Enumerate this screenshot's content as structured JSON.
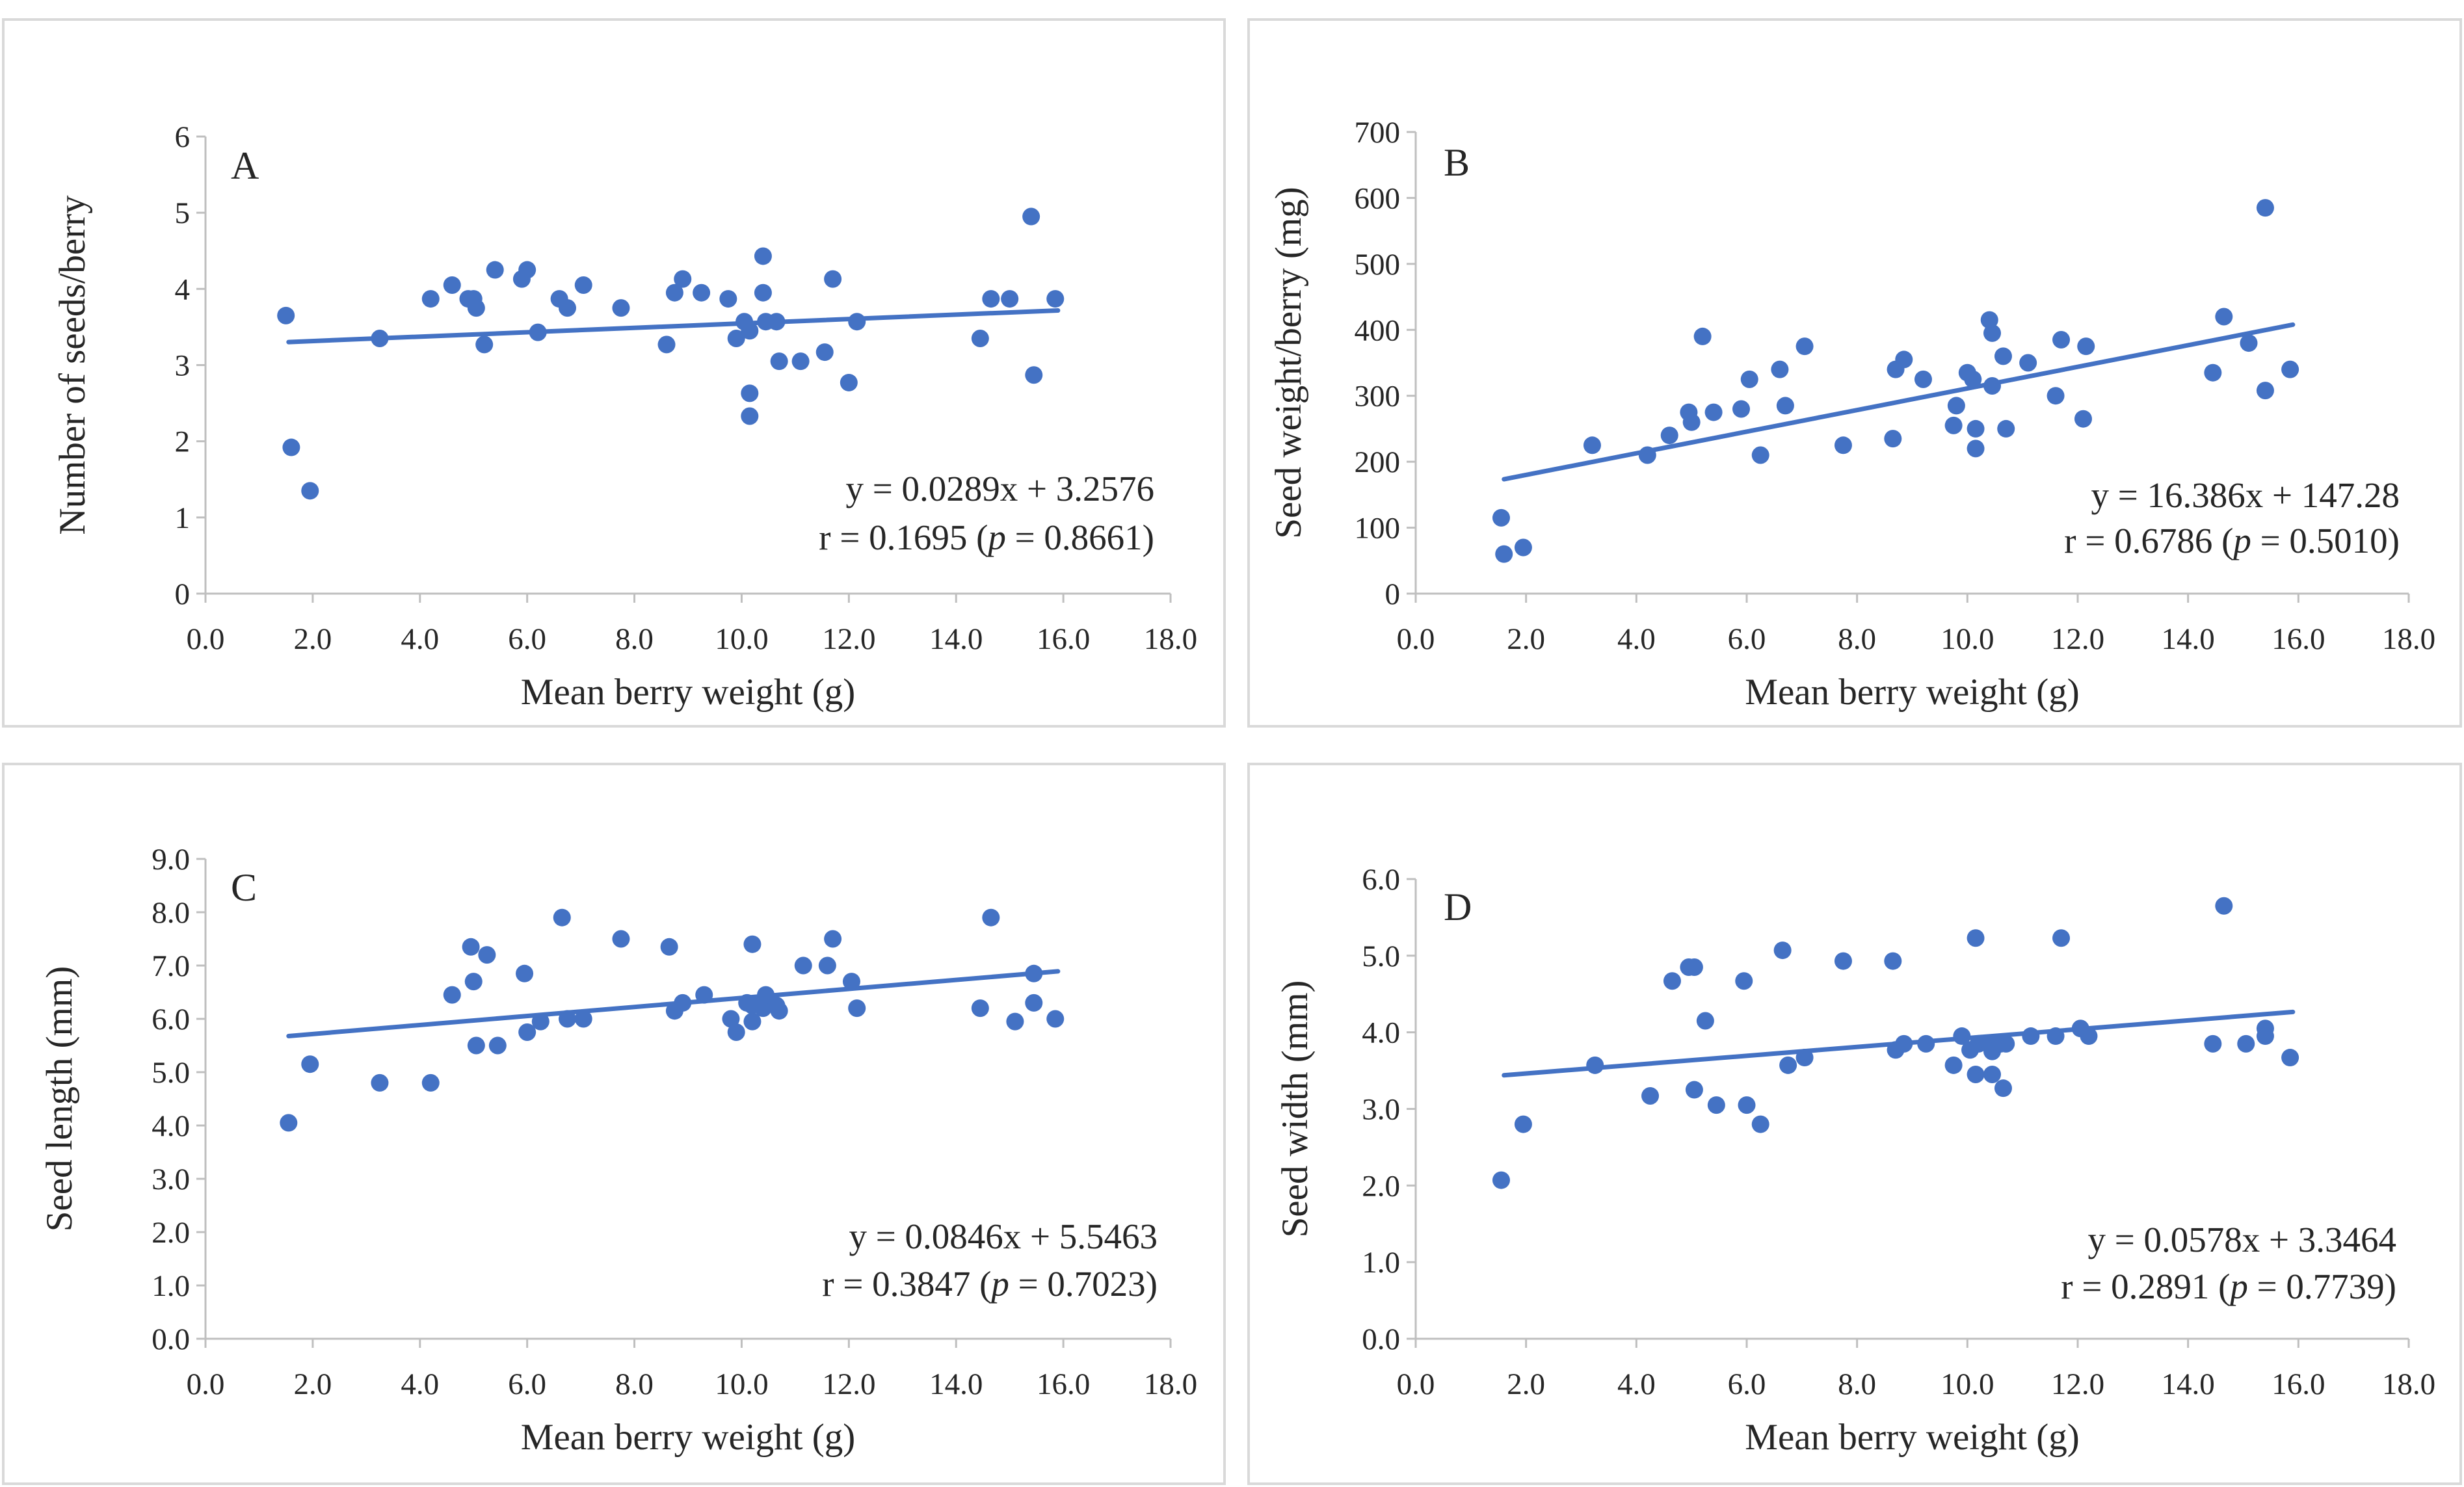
{
  "figure": {
    "name": "seed traits vs mean berry weight"
  },
  "style": {
    "marker_color": "#4472C4",
    "line_color": "#4472C4",
    "axis_color": "#BFBFBF",
    "text_color": "#262626",
    "border_color": "#D9D9D9"
  },
  "chart_data": [
    {
      "id": "A",
      "type": "scatter",
      "panel_label": "A",
      "xlabel": "Mean berry weight (g)",
      "ylabel": "Number of seeds/berry",
      "xlim": [
        0,
        18
      ],
      "ylim": [
        0,
        6
      ],
      "xticks": [
        "0.0",
        "2.0",
        "4.0",
        "6.0",
        "8.0",
        "10.0",
        "12.0",
        "14.0",
        "16.0",
        "18.0"
      ],
      "yticks": [
        "0",
        "1",
        "2",
        "3",
        "4",
        "5",
        "6"
      ],
      "x_tick_step": 2,
      "y_tick_step": 1,
      "trend": {
        "slope": 0.0289,
        "intercept": 3.2576,
        "x_range": [
          1.55,
          15.9
        ]
      },
      "equation": "y = 0.0289x + 3.2576",
      "r_prefix": "r = 0.1695 (",
      "p_symbol": "p",
      "p_suffix": " = 0.8661)",
      "points": [
        [
          1.5,
          3.65
        ],
        [
          1.6,
          1.92
        ],
        [
          1.95,
          1.35
        ],
        [
          3.25,
          3.35
        ],
        [
          4.2,
          3.87
        ],
        [
          4.6,
          4.05
        ],
        [
          4.9,
          3.87
        ],
        [
          5.0,
          3.87
        ],
        [
          5.05,
          3.75
        ],
        [
          5.2,
          3.27
        ],
        [
          5.4,
          4.25
        ],
        [
          5.9,
          4.13
        ],
        [
          6.0,
          4.25
        ],
        [
          6.2,
          3.43
        ],
        [
          6.6,
          3.87
        ],
        [
          6.75,
          3.75
        ],
        [
          7.05,
          4.05
        ],
        [
          7.75,
          3.75
        ],
        [
          8.6,
          3.27
        ],
        [
          8.75,
          3.95
        ],
        [
          8.9,
          4.13
        ],
        [
          9.25,
          3.95
        ],
        [
          9.75,
          3.87
        ],
        [
          9.9,
          3.35
        ],
        [
          10.05,
          3.57
        ],
        [
          10.15,
          3.45
        ],
        [
          10.15,
          2.63
        ],
        [
          10.15,
          2.33
        ],
        [
          10.4,
          4.43
        ],
        [
          10.4,
          3.95
        ],
        [
          10.45,
          3.57
        ],
        [
          10.65,
          3.57
        ],
        [
          10.7,
          3.05
        ],
        [
          11.1,
          3.05
        ],
        [
          11.55,
          3.17
        ],
        [
          11.7,
          4.13
        ],
        [
          12.0,
          2.77
        ],
        [
          12.15,
          3.57
        ],
        [
          14.45,
          3.35
        ],
        [
          14.65,
          3.87
        ],
        [
          15.0,
          3.87
        ],
        [
          15.4,
          4.95
        ],
        [
          15.45,
          2.87
        ],
        [
          15.85,
          3.87
        ]
      ]
    },
    {
      "id": "B",
      "type": "scatter",
      "panel_label": "B",
      "xlabel": "Mean berry weight (g)",
      "ylabel": "Seed weight/berry (mg)",
      "xlim": [
        0,
        18
      ],
      "ylim": [
        0,
        700
      ],
      "xticks": [
        "0.0",
        "2.0",
        "4.0",
        "6.0",
        "8.0",
        "10.0",
        "12.0",
        "14.0",
        "16.0",
        "18.0"
      ],
      "yticks": [
        "0",
        "100",
        "200",
        "300",
        "400",
        "500",
        "600",
        "700"
      ],
      "x_tick_step": 2,
      "y_tick_step": 100,
      "trend": {
        "slope": 16.386,
        "intercept": 147.28,
        "x_range": [
          1.6,
          15.9
        ]
      },
      "equation": "y = 16.386x + 147.28",
      "r_prefix": "r = 0.6786 (",
      "p_symbol": "p",
      "p_suffix": " = 0.5010)",
      "points": [
        [
          1.55,
          115
        ],
        [
          1.6,
          60
        ],
        [
          1.95,
          70
        ],
        [
          3.2,
          225
        ],
        [
          4.2,
          210
        ],
        [
          4.6,
          240
        ],
        [
          4.95,
          275
        ],
        [
          5.0,
          260
        ],
        [
          5.2,
          390
        ],
        [
          5.4,
          275
        ],
        [
          5.9,
          280
        ],
        [
          6.05,
          325
        ],
        [
          6.25,
          210
        ],
        [
          6.6,
          340
        ],
        [
          6.7,
          285
        ],
        [
          7.05,
          375
        ],
        [
          7.75,
          225
        ],
        [
          8.65,
          235
        ],
        [
          8.7,
          340
        ],
        [
          8.85,
          355
        ],
        [
          9.2,
          325
        ],
        [
          9.75,
          255
        ],
        [
          9.8,
          285
        ],
        [
          10.0,
          335
        ],
        [
          10.1,
          325
        ],
        [
          10.15,
          250
        ],
        [
          10.15,
          220
        ],
        [
          10.4,
          415
        ],
        [
          10.45,
          395
        ],
        [
          10.45,
          315
        ],
        [
          10.65,
          360
        ],
        [
          10.7,
          250
        ],
        [
          11.1,
          350
        ],
        [
          11.6,
          300
        ],
        [
          11.7,
          385
        ],
        [
          12.1,
          265
        ],
        [
          12.15,
          375
        ],
        [
          14.45,
          335
        ],
        [
          14.65,
          420
        ],
        [
          15.1,
          380
        ],
        [
          15.4,
          585
        ],
        [
          15.4,
          308
        ],
        [
          15.85,
          340
        ]
      ]
    },
    {
      "id": "C",
      "type": "scatter",
      "panel_label": "C",
      "xlabel": "Mean berry weight (g)",
      "ylabel": "Seed length (mm)",
      "xlim": [
        0,
        18
      ],
      "ylim": [
        0,
        9
      ],
      "xticks": [
        "0.0",
        "2.0",
        "4.0",
        "6.0",
        "8.0",
        "10.0",
        "12.0",
        "14.0",
        "16.0",
        "18.0"
      ],
      "yticks": [
        "0.0",
        "1.0",
        "2.0",
        "3.0",
        "4.0",
        "5.0",
        "6.0",
        "7.0",
        "8.0",
        "9.0"
      ],
      "x_tick_step": 2,
      "y_tick_step": 1,
      "trend": {
        "slope": 0.0846,
        "intercept": 5.5463,
        "x_range": [
          1.55,
          15.9
        ]
      },
      "equation": "y = 0.0846x + 5.5463",
      "r_prefix": "r = 0.3847 (",
      "p_symbol": "p",
      "p_suffix": " = 0.7023)",
      "points": [
        [
          1.55,
          4.05
        ],
        [
          1.95,
          5.15
        ],
        [
          3.25,
          4.8
        ],
        [
          4.2,
          4.8
        ],
        [
          4.6,
          6.45
        ],
        [
          4.95,
          7.35
        ],
        [
          5.0,
          6.7
        ],
        [
          5.05,
          5.5
        ],
        [
          5.25,
          7.2
        ],
        [
          5.45,
          5.5
        ],
        [
          5.95,
          6.85
        ],
        [
          6.0,
          5.75
        ],
        [
          6.25,
          5.95
        ],
        [
          6.65,
          7.9
        ],
        [
          6.75,
          6.0
        ],
        [
          7.05,
          6.0
        ],
        [
          7.75,
          7.5
        ],
        [
          8.65,
          7.35
        ],
        [
          8.75,
          6.15
        ],
        [
          8.9,
          6.3
        ],
        [
          9.3,
          6.45
        ],
        [
          9.8,
          6.0
        ],
        [
          9.9,
          5.75
        ],
        [
          10.1,
          6.3
        ],
        [
          10.2,
          7.4
        ],
        [
          10.2,
          6.25
        ],
        [
          10.2,
          5.95
        ],
        [
          10.4,
          6.2
        ],
        [
          10.45,
          6.45
        ],
        [
          10.65,
          6.25
        ],
        [
          10.7,
          6.15
        ],
        [
          11.15,
          7.0
        ],
        [
          11.6,
          7.0
        ],
        [
          11.7,
          7.5
        ],
        [
          12.05,
          6.7
        ],
        [
          12.15,
          6.2
        ],
        [
          14.45,
          6.2
        ],
        [
          14.65,
          7.9
        ],
        [
          15.1,
          5.95
        ],
        [
          15.45,
          6.85
        ],
        [
          15.45,
          6.3
        ],
        [
          15.85,
          6.0
        ]
      ]
    },
    {
      "id": "D",
      "type": "scatter",
      "panel_label": "D",
      "xlabel": "Mean berry weight (g)",
      "ylabel": "Seed width (mm)",
      "xlim": [
        0,
        18
      ],
      "ylim": [
        0,
        6
      ],
      "xticks": [
        "0.0",
        "2.0",
        "4.0",
        "6.0",
        "8.0",
        "10.0",
        "12.0",
        "14.0",
        "16.0",
        "18.0"
      ],
      "yticks": [
        "0.0",
        "1.0",
        "2.0",
        "3.0",
        "4.0",
        "5.0",
        "6.0"
      ],
      "x_tick_step": 2,
      "y_tick_step": 1,
      "trend": {
        "slope": 0.0578,
        "intercept": 3.3464,
        "x_range": [
          1.6,
          15.9
        ]
      },
      "equation": "y = 0.0578x + 3.3464",
      "r_prefix": "r = 0.2891 (",
      "p_symbol": "p",
      "p_suffix": " = 0.7739)",
      "points": [
        [
          1.55,
          2.07
        ],
        [
          1.95,
          2.8
        ],
        [
          3.25,
          3.57
        ],
        [
          4.25,
          3.17
        ],
        [
          4.65,
          4.67
        ],
        [
          4.95,
          4.85
        ],
        [
          5.05,
          4.85
        ],
        [
          5.05,
          3.25
        ],
        [
          5.25,
          4.15
        ],
        [
          5.45,
          3.05
        ],
        [
          5.95,
          4.67
        ],
        [
          6.0,
          3.05
        ],
        [
          6.25,
          2.8
        ],
        [
          6.65,
          5.07
        ],
        [
          6.75,
          3.57
        ],
        [
          7.05,
          3.67
        ],
        [
          7.75,
          4.93
        ],
        [
          8.65,
          4.93
        ],
        [
          8.7,
          3.77
        ],
        [
          8.85,
          3.85
        ],
        [
          9.25,
          3.85
        ],
        [
          9.75,
          3.57
        ],
        [
          9.9,
          3.95
        ],
        [
          10.05,
          3.77
        ],
        [
          10.15,
          5.23
        ],
        [
          10.15,
          3.45
        ],
        [
          10.2,
          3.85
        ],
        [
          10.4,
          3.85
        ],
        [
          10.45,
          3.45
        ],
        [
          10.45,
          3.75
        ],
        [
          10.6,
          3.85
        ],
        [
          10.65,
          3.27
        ],
        [
          10.7,
          3.85
        ],
        [
          11.15,
          3.95
        ],
        [
          11.6,
          3.95
        ],
        [
          11.7,
          5.23
        ],
        [
          12.05,
          4.05
        ],
        [
          12.2,
          3.95
        ],
        [
          14.45,
          3.85
        ],
        [
          14.65,
          5.65
        ],
        [
          15.05,
          3.85
        ],
        [
          15.4,
          4.05
        ],
        [
          15.4,
          3.95
        ],
        [
          15.85,
          3.67
        ]
      ]
    }
  ]
}
